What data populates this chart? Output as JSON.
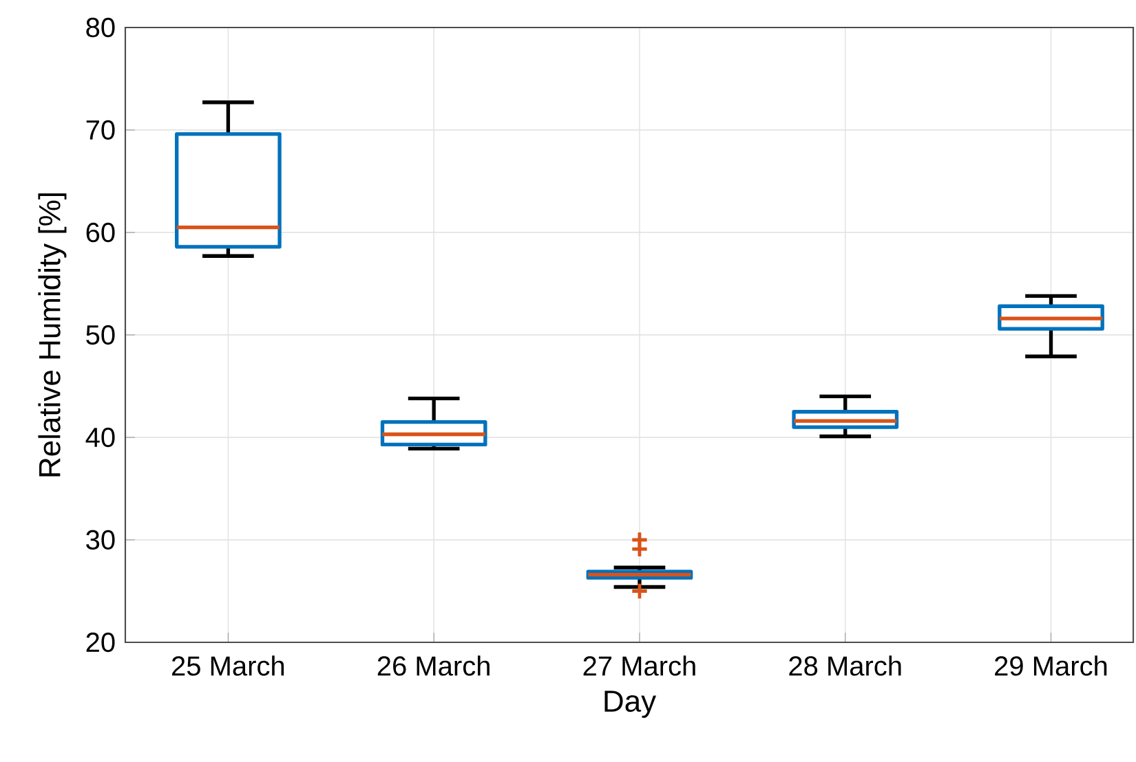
{
  "chart_data": {
    "type": "box",
    "xlabel": "Day",
    "ylabel": "Relative Humidity [%]",
    "categories": [
      "25 March",
      "26 March",
      "27 March",
      "28 March",
      "29 March"
    ],
    "series": [
      {
        "color": "#0072bd",
        "boxes": [
          {
            "low": 57.7,
            "q1": 58.6,
            "median": 60.5,
            "q3": 69.6,
            "high": 72.7
          },
          {
            "low": 38.9,
            "q1": 39.3,
            "median": 40.3,
            "q3": 41.5,
            "high": 43.8
          },
          {
            "low": 25.4,
            "q1": 26.3,
            "median": 26.6,
            "q3": 26.9,
            "high": 27.3,
            "outliers": [
              30.0,
              29.1,
              25.0
            ]
          },
          {
            "low": 40.1,
            "q1": 41.0,
            "median": 41.6,
            "q3": 42.5,
            "high": 44.0
          },
          {
            "low": 47.9,
            "q1": 50.6,
            "median": 51.6,
            "q3": 52.8,
            "high": 53.8
          }
        ]
      }
    ],
    "ylim": [
      20,
      80
    ],
    "yticks": [
      20,
      30,
      40,
      50,
      60,
      70,
      80
    ],
    "grid": true
  }
}
